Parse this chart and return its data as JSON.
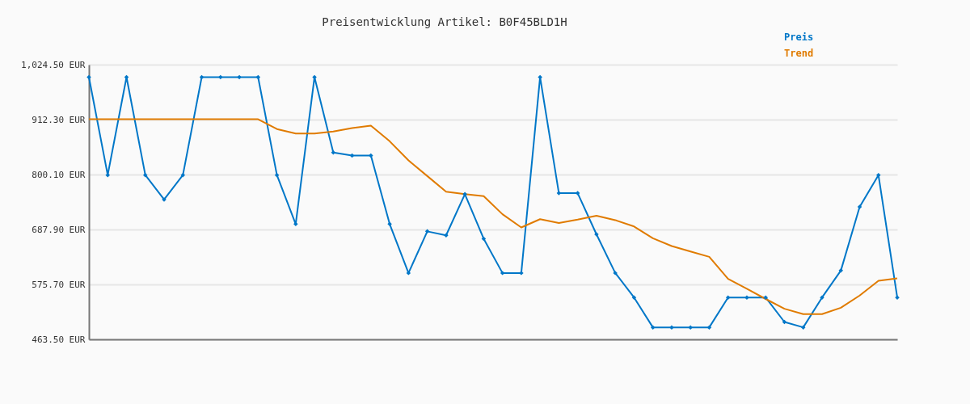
{
  "chart_data": {
    "type": "line",
    "title": "Preisentwicklung Artikel: B0F45BLD1H",
    "categories": [
      null,
      null,
      null,
      null,
      null,
      null,
      null,
      null,
      null,
      null,
      null,
      null,
      null,
      null,
      null,
      null,
      null,
      null,
      null,
      null,
      null,
      null,
      null,
      null,
      null,
      null,
      null,
      null,
      null,
      null,
      null,
      null,
      null,
      null,
      null,
      null,
      null,
      null,
      null,
      null,
      null,
      null,
      null,
      null
    ],
    "series": [
      {
        "name": "Preis",
        "color": "#0077c8",
        "marker": "diamond",
        "values": [
          999,
          799,
          999,
          799,
          749,
          799,
          999,
          999,
          999,
          999,
          799,
          699,
          999,
          845,
          839,
          839,
          699,
          599,
          684,
          676,
          760,
          669,
          599,
          599,
          999,
          762,
          762,
          678,
          599,
          549,
          488,
          488,
          488,
          488,
          549,
          549,
          549,
          499,
          488,
          549,
          604,
          734,
          799,
          549
        ]
      },
      {
        "name": "Trend",
        "color": "#e07b00",
        "marker": "none",
        "values": [
          913,
          913,
          913,
          913,
          913,
          913,
          913,
          913,
          913,
          913,
          893,
          884,
          884,
          888,
          895,
          900,
          868,
          829,
          797,
          765,
          760,
          756,
          719,
          692,
          709,
          701,
          708,
          716,
          707,
          694,
          670,
          654,
          643,
          632,
          587,
          567,
          546,
          526,
          515,
          515,
          528,
          553,
          583,
          588
        ]
      }
    ],
    "ylim": [
      463.5,
      1024.5
    ],
    "yticks": [
      {
        "value": 463.5,
        "label": "463.50 EUR"
      },
      {
        "value": 575.7,
        "label": "575.70 EUR"
      },
      {
        "value": 687.9,
        "label": "687.90 EUR"
      },
      {
        "value": 800.1,
        "label": "800.10 EUR"
      },
      {
        "value": 912.3,
        "label": "912.30 EUR"
      },
      {
        "value": 1024.5,
        "label": "1,024.50 EUR"
      }
    ],
    "grid": "y",
    "legend": "top right",
    "line_style": "solid"
  }
}
